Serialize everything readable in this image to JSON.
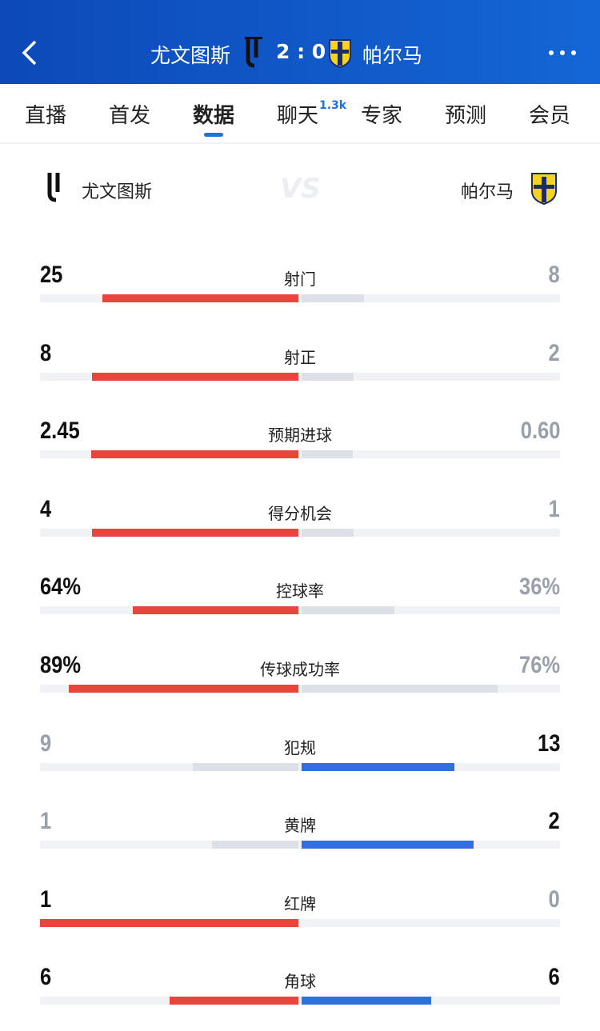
{
  "header": {
    "home": "尤文图斯",
    "score": "2 : 0",
    "away": "帕尔马"
  },
  "tabs": [
    "直播",
    "首发",
    "数据",
    "聊天",
    "专家",
    "预测",
    "会员"
  ],
  "active_tab": 2,
  "chat_badge": "1.3k",
  "teams": {
    "home": "尤文图斯",
    "vs": "VS",
    "away": "帕尔马"
  },
  "colors": {
    "home": "#e8453c",
    "away": "#2f6fe0",
    "muted": "#dde0e6",
    "track": "#f1f2f5"
  },
  "stats": [
    {
      "name": "射门",
      "home": 25,
      "away": 8
    },
    {
      "name": "射正",
      "home": 8,
      "away": 2
    },
    {
      "name": "预期进球",
      "home": 2.45,
      "away": 0.6,
      "away_label": "0.60"
    },
    {
      "name": "得分机会",
      "home": 4,
      "away": 1
    },
    {
      "name": "控球率",
      "home": 64,
      "away": 36,
      "home_label": "64%",
      "away_label": "36%"
    },
    {
      "name": "传球成功率",
      "home": 89,
      "away": 76,
      "home_label": "89%",
      "away_label": "76%"
    },
    {
      "name": "犯规",
      "home": 9,
      "away": 13
    },
    {
      "name": "黄牌",
      "home": 1,
      "away": 2
    },
    {
      "name": "红牌",
      "home": 1,
      "away": 0
    },
    {
      "name": "角球",
      "home": 6,
      "away": 6
    }
  ]
}
